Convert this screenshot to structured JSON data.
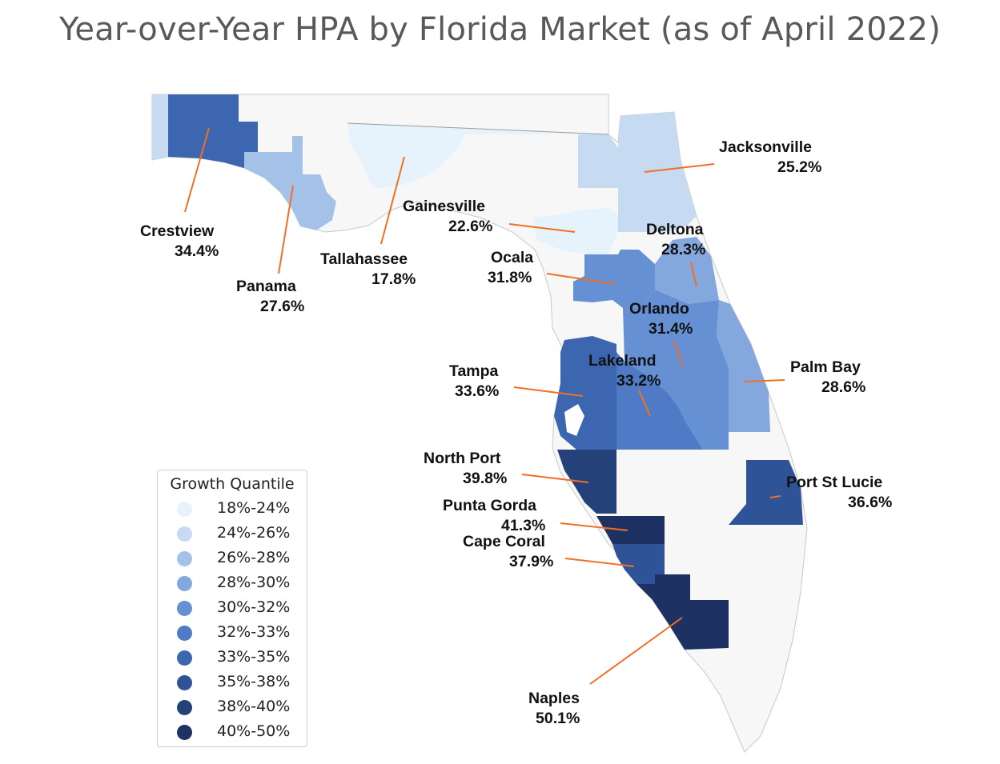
{
  "title": "Year-over-Year HPA by Florida Market (as of April 2022)",
  "legend": {
    "title": "Growth Quantile",
    "items": [
      {
        "label": "18%-24%",
        "color": "#e7f3fc"
      },
      {
        "label": "24%-26%",
        "color": "#c6dbf2"
      },
      {
        "label": "26%-28%",
        "color": "#a4c2e8"
      },
      {
        "label": "28%-30%",
        "color": "#84a7de"
      },
      {
        "label": "30%-32%",
        "color": "#6590d4"
      },
      {
        "label": "32%-33%",
        "color": "#4f7bc6"
      },
      {
        "label": "33%-35%",
        "color": "#3d66b0"
      },
      {
        "label": "35%-38%",
        "color": "#2e5396"
      },
      {
        "label": "38%-40%",
        "color": "#25417a"
      },
      {
        "label": "40%-50%",
        "color": "#1d3263"
      }
    ]
  },
  "markets": [
    {
      "name": "Crestview",
      "value": "34.4%",
      "hpa": 34.4,
      "color": "#3d66b0"
    },
    {
      "name": "Panama",
      "value": "27.6%",
      "hpa": 27.6,
      "color": "#a4c2e8"
    },
    {
      "name": "Tallahassee",
      "value": "17.8%",
      "hpa": 17.8,
      "color": "#e7f3fc"
    },
    {
      "name": "Gainesville",
      "value": "22.6%",
      "hpa": 22.6,
      "color": "#e7f3fc"
    },
    {
      "name": "Jacksonville",
      "value": "25.2%",
      "hpa": 25.2,
      "color": "#c6dbf2"
    },
    {
      "name": "Deltona",
      "value": "28.3%",
      "hpa": 28.3,
      "color": "#84a7de"
    },
    {
      "name": "Ocala",
      "value": "31.8%",
      "hpa": 31.8,
      "color": "#6590d4"
    },
    {
      "name": "Orlando",
      "value": "31.4%",
      "hpa": 31.4,
      "color": "#6590d4"
    },
    {
      "name": "Palm Bay",
      "value": "28.6%",
      "hpa": 28.6,
      "color": "#84a7de"
    },
    {
      "name": "Lakeland",
      "value": "33.2%",
      "hpa": 33.2,
      "color": "#4f7bc6"
    },
    {
      "name": "Tampa",
      "value": "33.6%",
      "hpa": 33.6,
      "color": "#3d66b0"
    },
    {
      "name": "North Port",
      "value": "39.8%",
      "hpa": 39.8,
      "color": "#25417a"
    },
    {
      "name": "Port St Lucie",
      "value": "36.6%",
      "hpa": 36.6,
      "color": "#2e5396"
    },
    {
      "name": "Punta Gorda",
      "value": "41.3%",
      "hpa": 41.3,
      "color": "#1d3263"
    },
    {
      "name": "Cape Coral",
      "value": "37.9%",
      "hpa": 37.9,
      "color": "#2e5396"
    },
    {
      "name": "Naples",
      "value": "50.1%",
      "hpa": 50.1,
      "color": "#1d3263"
    }
  ],
  "colors": {
    "base_land": "#f7f7f7",
    "border": "#bdbdbd",
    "leader_line": "#f07023"
  }
}
